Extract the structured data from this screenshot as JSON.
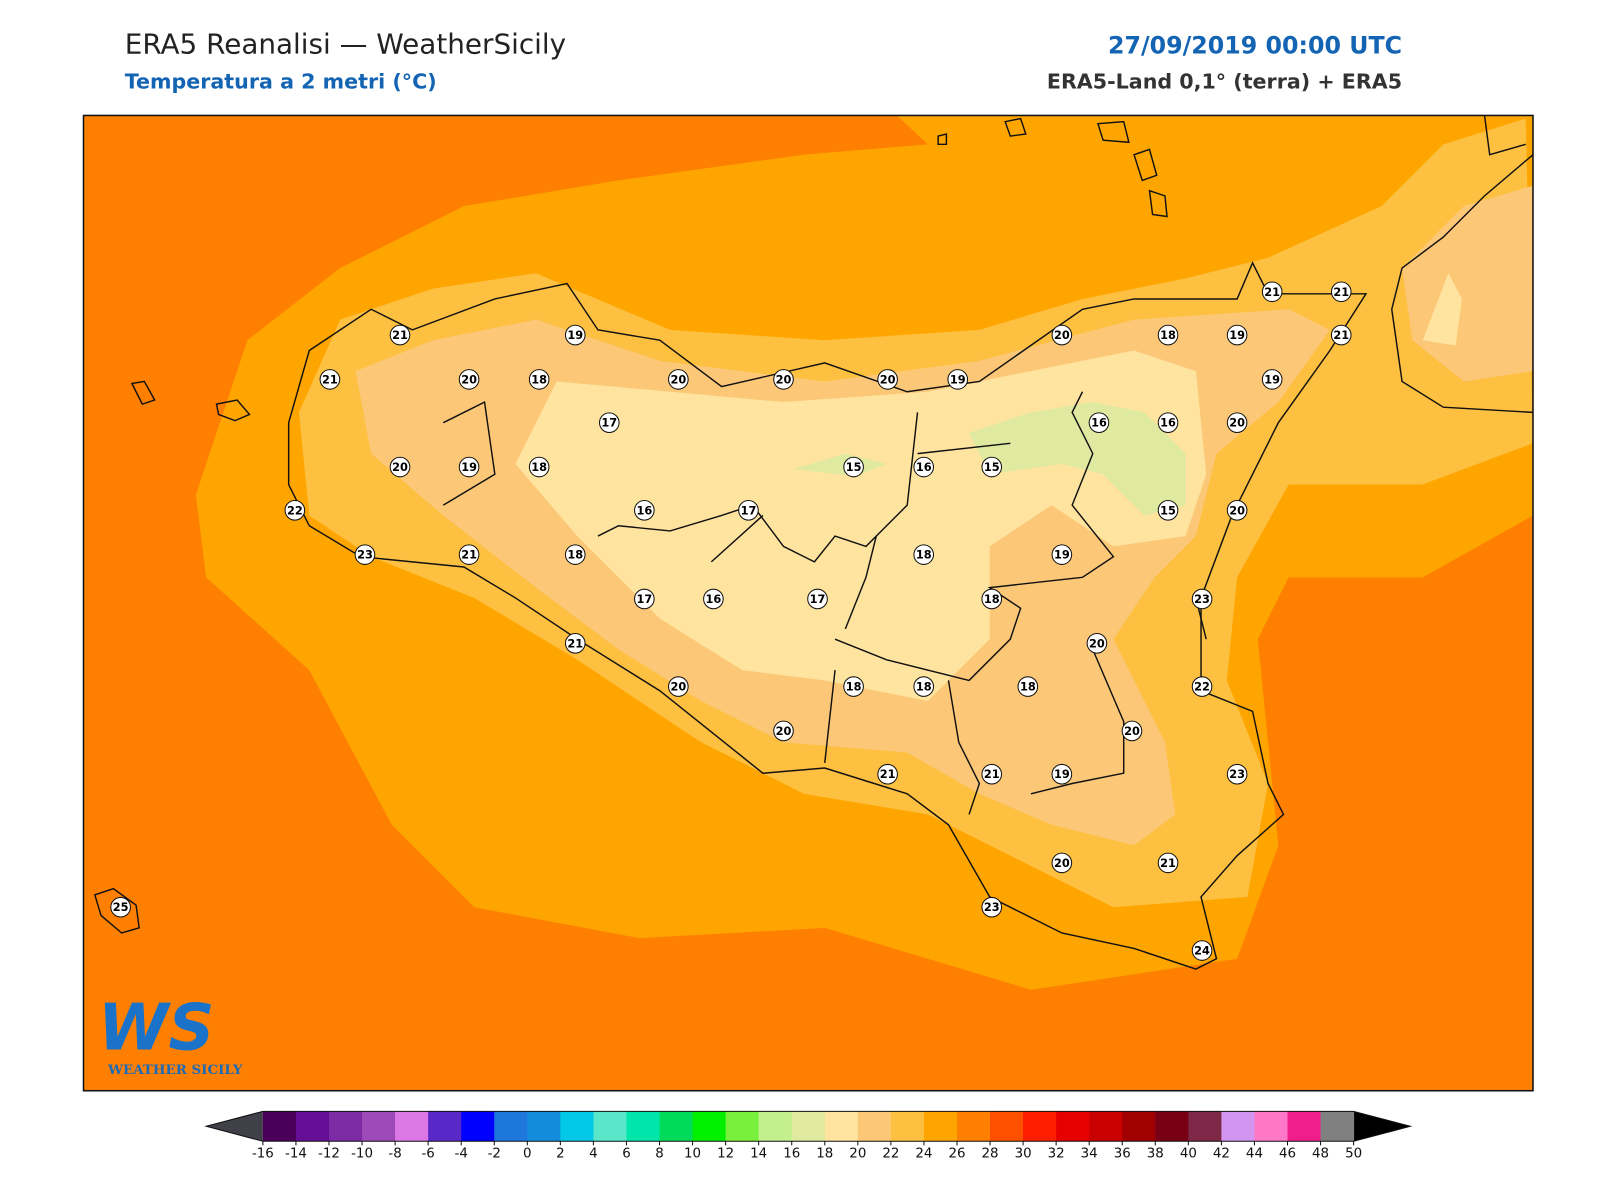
{
  "header": {
    "title": "ERA5 Reanalisi — WeatherSicily",
    "subtitle": "Temperatura a 2 metri (°C)",
    "date": "27/09/2019 00:00 UTC",
    "source": "ERA5-Land 0,1° (terra) + ERA5"
  },
  "stations": [
    21,
    19,
    21,
    20,
    18,
    20,
    20,
    20,
    19,
    20,
    18,
    19,
    21,
    21,
    21,
    19,
    17,
    16,
    16,
    20,
    20,
    19,
    18,
    15,
    16,
    15,
    22,
    16,
    17,
    15,
    20,
    23,
    21,
    18,
    18,
    19,
    17,
    16,
    17,
    18,
    23,
    21,
    20,
    20,
    18,
    18,
    18,
    22,
    20,
    20,
    21,
    21,
    19,
    23,
    20,
    21,
    25,
    23,
    24
  ],
  "logo": {
    "mark": "WS",
    "text": "WEATHER SICILY"
  },
  "colorbar": {
    "ticks": [
      -16,
      -14,
      -12,
      -10,
      -8,
      -6,
      -4,
      -2,
      0,
      2,
      4,
      6,
      8,
      10,
      12,
      14,
      16,
      18,
      20,
      22,
      24,
      26,
      28,
      30,
      32,
      34,
      36,
      38,
      40,
      42,
      44,
      46,
      48,
      50
    ],
    "colors": [
      "#4a0058",
      "#640f96",
      "#7d2aa5",
      "#9b4ab8",
      "#dc78e6",
      "#5a28c8",
      "#0000ff",
      "#1e78dc",
      "#148cdc",
      "#00c8e6",
      "#5ae6c8",
      "#00e6aa",
      "#00dc5a",
      "#00f000",
      "#78f03c",
      "#c3f08c",
      "#dfe9a0",
      "#ffe4a0",
      "#fcc878",
      "#fdc040",
      "#ffa500",
      "#ff8000",
      "#ff5000",
      "#ff1e00",
      "#e60000",
      "#c80000",
      "#a00000",
      "#780014",
      "#7d2846",
      "#d296f0",
      "#ff78c8",
      "#f01e8c",
      "#808080",
      "#3c3c3c"
    ],
    "under_color": "#404048",
    "over_color": "#000000"
  }
}
